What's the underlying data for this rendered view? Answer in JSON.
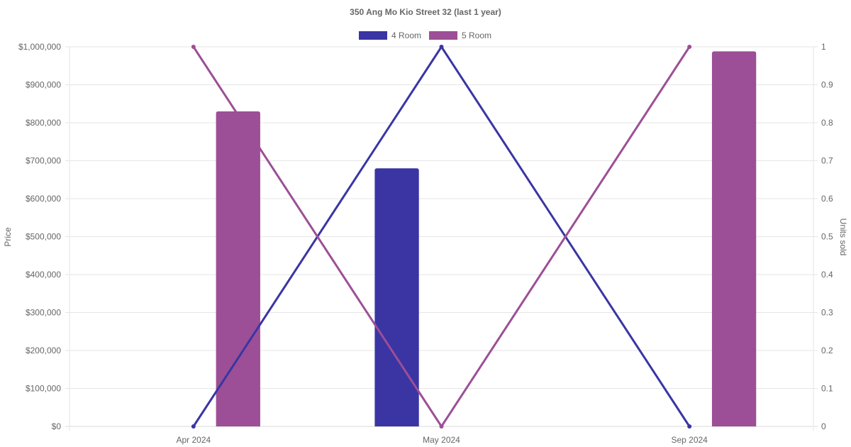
{
  "chart_data": {
    "type": "bar",
    "title": "350 Ang Mo Kio Street 32 (last 1 year)",
    "categories": [
      "Apr 2024",
      "May 2024",
      "Sep 2024"
    ],
    "y_left": {
      "label": "Price",
      "ylim": [
        0,
        1000000
      ],
      "ticks": [
        "$0",
        "$100,000",
        "$200,000",
        "$300,000",
        "$400,000",
        "$500,000",
        "$600,000",
        "$700,000",
        "$800,000",
        "$900,000",
        "$1,000,000"
      ]
    },
    "y_right": {
      "label": "Units sold",
      "ylim": [
        0,
        1
      ],
      "ticks": [
        "0",
        "0.1",
        "0.2",
        "0.3",
        "0.4",
        "0.5",
        "0.6",
        "0.7",
        "0.8",
        "0.9",
        "1"
      ]
    },
    "series": [
      {
        "name": "4 Room",
        "color": "#3a35a3",
        "price": [
          null,
          680000,
          null
        ],
        "units_sold": [
          0,
          1,
          0
        ]
      },
      {
        "name": "5 Room",
        "color": "#9c4f96",
        "price": [
          830000,
          null,
          988000
        ],
        "units_sold": [
          1,
          0,
          1
        ]
      }
    ],
    "legend_position": "top-center",
    "grid": true
  }
}
